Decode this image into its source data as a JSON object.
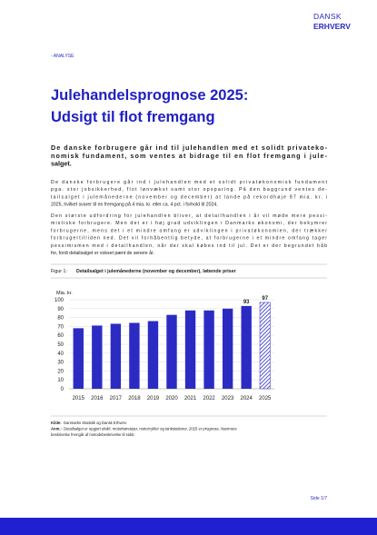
{
  "header": {
    "brand_top": "DANSK",
    "brand_bottom": "ERHVERV",
    "section": "- ANALYSE"
  },
  "title": [
    "Julehandelsprognose 2025:",
    "Udsigt til flot fremgang"
  ],
  "lead": [
    "De danske forbrugere går ind til julehandlen med et solidt privateko-",
    "nomisk fundament, som ventes at bidrage til en flot fremgang i jule-",
    "salget."
  ],
  "paragraphs": [
    [
      "De danske forbrugere går ind i julehandlen med et solidt privatøkonomisk fundament",
      "pga. stor jobsikkerhed, flot lønvækst samt stor opsparing. På den baggrund ventes de-",
      "tailsalget i julemånederne (november og december) at lande på rekordhøje 97 mia. kr. i",
      "2025, hvilket svarer til en fremgang på 4 mia. kr. eller ca. 4 pct. i forhold til 2024."
    ],
    [
      "Den største udfordring for julehandlen bliver, at detailhandlen i år vil møde mere pessi-",
      "mistiske forbrugere. Men det er i høj grad udviklingen i Danmarks økonomi, der bekymrer",
      "forbrugerne, mens det i et mindre omfang er udviklingen i privatøkonomien, der trækker",
      "forbrugertilliden ned. Det vil forhåbentlig betyde, at forbrugerne i et mindre omfang tager",
      "pessimismen med i detailhandlen, når der skal købes ind til jul. Det er der begrundet håb",
      "for, fordi detailsalget er vokset pænt de senere år."
    ]
  ],
  "figure": {
    "label": "Figur 1:",
    "caption": "Detailsalget i julemånederne (november og december), løbende priser"
  },
  "chart_data": {
    "type": "bar",
    "y_label": "Mia. kr.",
    "categories": [
      "2015",
      "2016",
      "2017",
      "2018",
      "2019",
      "2020",
      "2021",
      "2022",
      "2023",
      "2024",
      "2025"
    ],
    "values": [
      68,
      71,
      73,
      74,
      76,
      83,
      88,
      88,
      90,
      93,
      97
    ],
    "value_labels": [
      null,
      null,
      null,
      null,
      null,
      null,
      null,
      null,
      null,
      "93",
      "97"
    ],
    "patterns": [
      "solid",
      "solid",
      "solid",
      "solid",
      "solid",
      "solid",
      "solid",
      "solid",
      "solid",
      "solid",
      "hatch"
    ],
    "color": "#2b2bc4",
    "ylim": [
      0,
      100
    ],
    "yticks": [
      0,
      10,
      20,
      30,
      40,
      50,
      60,
      70,
      80,
      90,
      100
    ],
    "grid": true
  },
  "notes": [
    {
      "key": "Kilde:",
      "text": [
        "Danmarks Statistik og Dansk Erhverv"
      ]
    },
    {
      "key": "Anm.:",
      "text": [
        "Detailsalget er opgjort ekskl. motorkøretøjer, motorcykler og tankstationer, 2025 er prognose. Nærmere",
        "beskrivelse fremgår af metodebeskrivelse til sidst."
      ]
    }
  ],
  "footer": {
    "page": "Side 1/7"
  }
}
